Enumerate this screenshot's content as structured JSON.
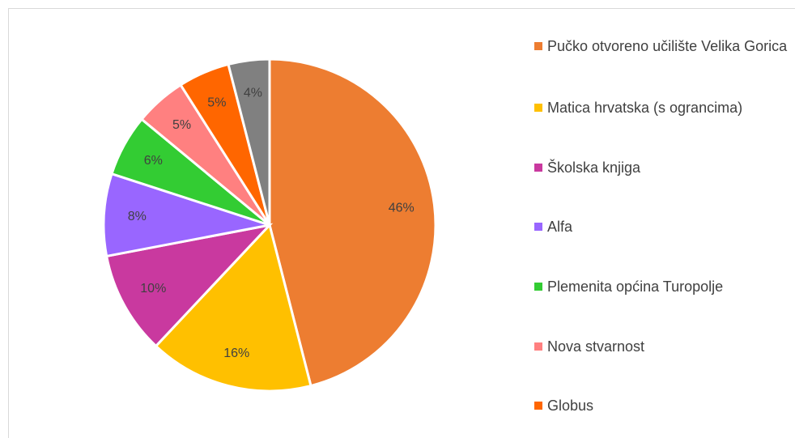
{
  "chart_data": {
    "type": "pie",
    "categories": [
      "Pučko otvoreno učilište Velika Gorica",
      "Matica hrvatska (s ograncima)",
      "Školska knjiga",
      "Alfa",
      "Plemenita općina Turopolje",
      "Nova stvarnost",
      "Globus",
      null
    ],
    "values": [
      46,
      16,
      10,
      8,
      6,
      5,
      5,
      4
    ],
    "value_labels": [
      "46%",
      "16%",
      "10%",
      "8%",
      "6%",
      "5%",
      "5%",
      "4%"
    ],
    "colors": [
      "#ED7D31",
      "#FFC000",
      "#C9399F",
      "#9966FF",
      "#33CC33",
      "#FF8080",
      "#FF6600",
      "#808080"
    ]
  }
}
